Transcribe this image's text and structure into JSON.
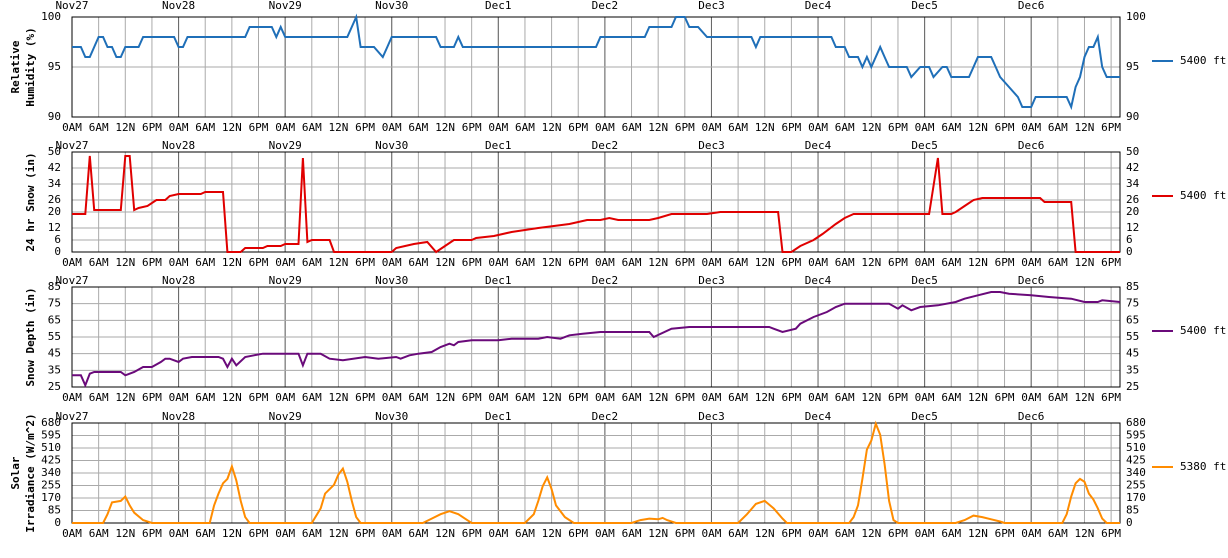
{
  "time_axis": {
    "xlim": [
      0,
      236
    ],
    "xticks": [
      {
        "value": 0,
        "label": "0AM"
      },
      {
        "value": 6,
        "label": "6AM"
      },
      {
        "value": 12,
        "label": "12N"
      },
      {
        "value": 18,
        "label": "6PM"
      },
      {
        "value": 24,
        "label": "0AM"
      },
      {
        "value": 30,
        "label": "6AM"
      },
      {
        "value": 36,
        "label": "12N"
      },
      {
        "value": 42,
        "label": "6PM"
      },
      {
        "value": 48,
        "label": "0AM"
      },
      {
        "value": 54,
        "label": "6AM"
      },
      {
        "value": 60,
        "label": "12N"
      },
      {
        "value": 66,
        "label": "6PM"
      },
      {
        "value": 72,
        "label": "0AM"
      },
      {
        "value": 78,
        "label": "6AM"
      },
      {
        "value": 84,
        "label": "12N"
      },
      {
        "value": 90,
        "label": "6PM"
      },
      {
        "value": 96,
        "label": "0AM"
      },
      {
        "value": 102,
        "label": "6AM"
      },
      {
        "value": 108,
        "label": "12N"
      },
      {
        "value": 114,
        "label": "6PM"
      },
      {
        "value": 120,
        "label": "0AM"
      },
      {
        "value": 126,
        "label": "6AM"
      },
      {
        "value": 132,
        "label": "12N"
      },
      {
        "value": 138,
        "label": "6PM"
      },
      {
        "value": 144,
        "label": "0AM"
      },
      {
        "value": 150,
        "label": "6AM"
      },
      {
        "value": 156,
        "label": "12N"
      },
      {
        "value": 162,
        "label": "6PM"
      },
      {
        "value": 168,
        "label": "0AM"
      },
      {
        "value": 174,
        "label": "6AM"
      },
      {
        "value": 180,
        "label": "12N"
      },
      {
        "value": 186,
        "label": "6PM"
      },
      {
        "value": 192,
        "label": "0AM"
      },
      {
        "value": 198,
        "label": "6AM"
      },
      {
        "value": 204,
        "label": "12N"
      },
      {
        "value": 210,
        "label": "6PM"
      },
      {
        "value": 216,
        "label": "0AM"
      },
      {
        "value": 222,
        "label": "6AM"
      },
      {
        "value": 228,
        "label": "12N"
      },
      {
        "value": 234,
        "label": "6PM"
      }
    ],
    "day_ticks": [
      {
        "value": 0,
        "label": "Nov27"
      },
      {
        "value": 24,
        "label": "Nov28"
      },
      {
        "value": 48,
        "label": "Nov29"
      },
      {
        "value": 72,
        "label": "Nov30"
      },
      {
        "value": 96,
        "label": "Dec1"
      },
      {
        "value": 120,
        "label": "Dec2"
      },
      {
        "value": 144,
        "label": "Dec3"
      },
      {
        "value": 168,
        "label": "Dec4"
      },
      {
        "value": 192,
        "label": "Dec5"
      },
      {
        "value": 216,
        "label": "Dec6"
      }
    ]
  },
  "chart_data": [
    {
      "type": "line",
      "ylabel": [
        "Relative",
        "Humidity (%)"
      ],
      "ylim": [
        90,
        100
      ],
      "yticks": [
        90,
        95,
        100
      ],
      "grid": true,
      "series": [
        {
          "name": "5400 ft",
          "color": "#1f6fb8",
          "x": [
            0,
            2,
            3,
            4,
            5,
            6,
            7,
            8,
            9,
            10,
            11,
            12,
            15,
            16,
            23,
            24,
            25,
            26,
            39,
            40,
            45,
            46,
            47,
            48,
            62,
            64,
            65,
            68,
            70,
            71,
            72,
            82,
            83,
            86,
            87,
            88,
            118,
            119,
            129,
            130,
            135,
            136,
            138,
            139,
            141,
            143,
            153,
            154,
            155,
            171,
            172,
            174,
            175,
            177,
            178,
            179,
            180,
            182,
            183,
            184,
            188,
            189,
            191,
            193,
            194,
            196,
            197,
            198,
            202,
            203,
            204,
            207,
            208,
            209,
            211,
            213,
            214,
            216,
            217,
            224,
            225,
            226,
            227,
            228,
            229,
            230,
            231,
            232,
            233,
            236
          ],
          "values": [
            97,
            97,
            96,
            96,
            97,
            98,
            98,
            97,
            97,
            96,
            96,
            97,
            97,
            98,
            98,
            97,
            97,
            98,
            98,
            99,
            99,
            98,
            99,
            98,
            98,
            100,
            97,
            97,
            96,
            97,
            98,
            98,
            97,
            97,
            98,
            97,
            97,
            98,
            98,
            99,
            99,
            100,
            100,
            99,
            99,
            98,
            98,
            97,
            98,
            98,
            97,
            97,
            96,
            96,
            95,
            96,
            95,
            97,
            96,
            95,
            95,
            94,
            95,
            95,
            94,
            95,
            95,
            94,
            94,
            95,
            96,
            96,
            95,
            94,
            93,
            92,
            91,
            91,
            92,
            92,
            91,
            93,
            94,
            96,
            97,
            97,
            98,
            95,
            94,
            94
          ]
        }
      ]
    },
    {
      "type": "line",
      "ylabel": [
        "24 hr Snow (in)"
      ],
      "ylim": [
        0,
        50
      ],
      "yticks": [
        0,
        6,
        12,
        20,
        26,
        34,
        42,
        50
      ],
      "grid": true,
      "series": [
        {
          "name": "5400 ft",
          "color": "#e00000",
          "x": [
            0,
            3,
            4,
            5,
            11,
            12,
            13,
            14,
            15,
            17,
            19,
            21,
            22,
            24,
            29,
            30,
            34,
            35,
            38,
            39,
            43,
            44,
            47,
            48,
            51,
            52,
            53,
            54,
            58,
            59,
            72,
            73,
            75,
            77,
            80,
            82,
            84,
            86,
            90,
            91,
            95,
            99,
            105,
            112,
            116,
            119,
            121,
            123,
            130,
            132,
            135,
            143,
            146,
            159,
            160,
            162,
            164,
            167,
            169,
            172,
            174,
            176,
            191,
            193,
            195,
            196,
            198,
            199,
            201,
            203,
            205,
            218,
            219,
            225,
            226,
            236
          ],
          "values": [
            19,
            19,
            48,
            21,
            21,
            48,
            48,
            21,
            22,
            23,
            26,
            26,
            28,
            29,
            29,
            30,
            30,
            0,
            0,
            2,
            2,
            3,
            3,
            4,
            4,
            47,
            5,
            6,
            6,
            0,
            0,
            2,
            3,
            4,
            5,
            0,
            3,
            6,
            6,
            7,
            8,
            10,
            12,
            14,
            16,
            16,
            17,
            16,
            16,
            17,
            19,
            19,
            20,
            20,
            0,
            0,
            3,
            6,
            9,
            14,
            17,
            19,
            19,
            19,
            47,
            19,
            19,
            20,
            23,
            26,
            27,
            27,
            25,
            25,
            0,
            0
          ]
        }
      ]
    },
    {
      "type": "line",
      "ylabel": [
        "Snow Depth (in)"
      ],
      "ylim": [
        25,
        85
      ],
      "yticks": [
        25,
        35,
        45,
        55,
        65,
        75,
        85
      ],
      "grid": true,
      "series": [
        {
          "name": "5400 ft",
          "color": "#6a0a7a",
          "x": [
            0,
            2,
            3,
            4,
            5,
            11,
            12,
            14,
            16,
            18,
            20,
            21,
            22,
            24,
            25,
            27,
            33,
            34,
            35,
            36,
            37,
            39,
            41,
            43,
            51,
            52,
            53,
            56,
            58,
            61,
            66,
            69,
            73,
            74,
            76,
            78,
            81,
            83,
            85,
            86,
            87,
            90,
            96,
            99,
            105,
            107,
            110,
            112,
            115,
            119,
            130,
            131,
            135,
            139,
            157,
            158,
            160,
            163,
            164,
            167,
            170,
            172,
            174,
            184,
            186,
            187,
            189,
            191,
            195,
            199,
            201,
            204,
            207,
            209,
            211,
            216,
            220,
            225,
            228,
            231,
            232,
            236
          ],
          "values": [
            32,
            32,
            26,
            33,
            34,
            34,
            32,
            34,
            37,
            37,
            40,
            42,
            42,
            40,
            42,
            43,
            43,
            42,
            37,
            42,
            38,
            43,
            44,
            45,
            45,
            38,
            45,
            45,
            42,
            41,
            43,
            42,
            43,
            42,
            44,
            45,
            46,
            49,
            51,
            50,
            52,
            53,
            53,
            54,
            54,
            55,
            54,
            56,
            57,
            58,
            58,
            55,
            60,
            61,
            61,
            60,
            58,
            60,
            63,
            67,
            70,
            73,
            75,
            75,
            72,
            74,
            71,
            73,
            74,
            76,
            78,
            80,
            82,
            82,
            81,
            80,
            79,
            78,
            76,
            76,
            77,
            76
          ]
        }
      ]
    },
    {
      "type": "line",
      "ylabel": [
        "Solar",
        "Irradiance (W/m^2)"
      ],
      "ylim": [
        0,
        680
      ],
      "yticks": [
        0,
        85,
        170,
        255,
        340,
        425,
        510,
        595,
        680
      ],
      "grid": true,
      "series": [
        {
          "name": "5380 ft",
          "color": "#ff8c00",
          "x": [
            0,
            7,
            8,
            9,
            11,
            12,
            13,
            14,
            16,
            18,
            31,
            32,
            33,
            34,
            35,
            36,
            37,
            38,
            39,
            40,
            54,
            56,
            57,
            59,
            60,
            61,
            62,
            63,
            64,
            65,
            79,
            81,
            83,
            85,
            87,
            89,
            90,
            102,
            104,
            105,
            106,
            107,
            108,
            109,
            111,
            113,
            126,
            128,
            130,
            132,
            133,
            134,
            136,
            150,
            152,
            154,
            156,
            158,
            160,
            161,
            175,
            176,
            177,
            178,
            179,
            180,
            181,
            182,
            183,
            184,
            185,
            186,
            199,
            201,
            203,
            205,
            207,
            209,
            210,
            223,
            224,
            225,
            226,
            227,
            228,
            229,
            230,
            231,
            232,
            233,
            236
          ],
          "values": [
            0,
            0,
            60,
            140,
            150,
            180,
            120,
            70,
            20,
            0,
            0,
            120,
            200,
            270,
            300,
            385,
            290,
            150,
            40,
            0,
            0,
            100,
            200,
            260,
            330,
            370,
            280,
            150,
            40,
            0,
            0,
            30,
            60,
            80,
            60,
            20,
            0,
            0,
            60,
            150,
            250,
            310,
            230,
            120,
            40,
            0,
            0,
            20,
            30,
            25,
            35,
            20,
            0,
            0,
            60,
            130,
            150,
            100,
            30,
            0,
            0,
            40,
            120,
            300,
            500,
            560,
            675,
            600,
            400,
            150,
            20,
            0,
            0,
            20,
            50,
            40,
            25,
            10,
            0,
            0,
            60,
            180,
            270,
            300,
            280,
            200,
            160,
            100,
            30,
            0,
            0
          ]
        }
      ]
    }
  ]
}
